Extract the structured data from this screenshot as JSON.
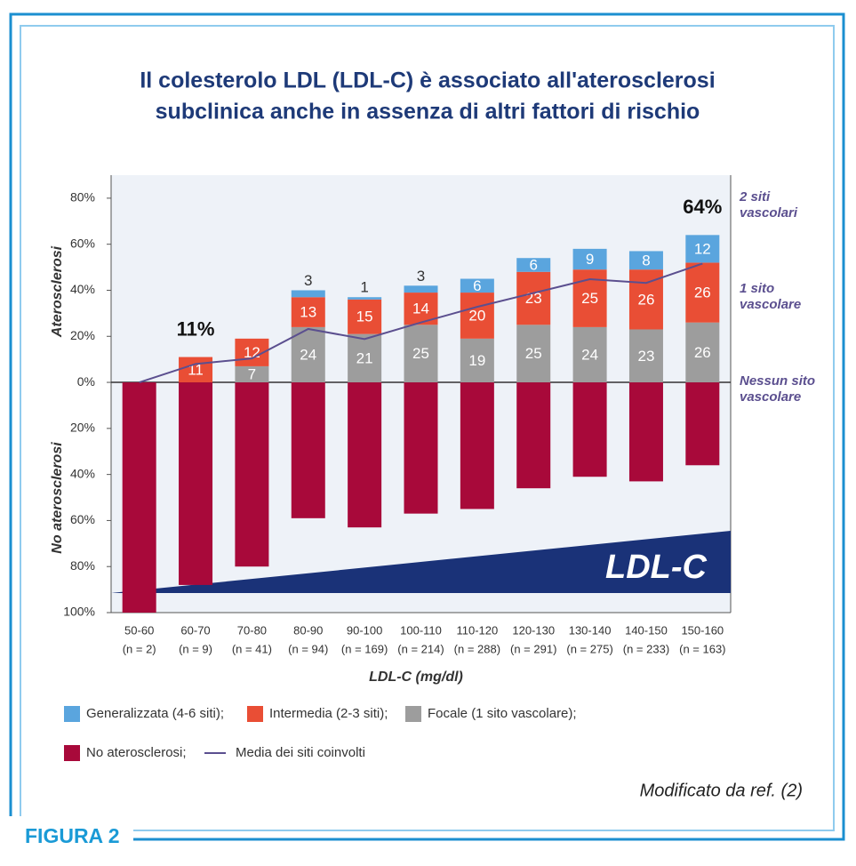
{
  "chart_data": {
    "type": "stacked_bar",
    "title": [
      "Il colesterolo LDL (LDL-C) è associato all'aterosclerosi",
      "subclinica anche in assenza di altri fattori di rischio"
    ],
    "figure_label": "FIGURA 2",
    "source": "Modificato da ref. (2)",
    "band_label": "LDL-C",
    "xlabel": "LDL-C (mg/dl)",
    "ylabel_top": "Aterosclerosi",
    "ylabel_bottom": "No aterosclerosi",
    "categories": [
      "50-60",
      "60-70",
      "70-80",
      "80-90",
      "90-100",
      "100-110",
      "110-120",
      "120-130",
      "130-140",
      "140-150",
      "150-160"
    ],
    "n_labels": [
      "(n = 2)",
      "(n = 9)",
      "(n = 41)",
      "(n = 94)",
      "(n = 169)",
      "(n = 214)",
      "(n = 288)",
      "(n = 291)",
      "(n = 275)",
      "(n = 233)",
      "(n = 163)"
    ],
    "series": [
      {
        "name": "No aterosclerosi;",
        "color": "#a8093a",
        "values": [
          -100,
          -88,
          -80,
          -59,
          -63,
          -57,
          -55,
          -46,
          -41,
          -43,
          -36
        ]
      },
      {
        "name": "Focale (1 sito vascolare);",
        "color": "#9d9d9d",
        "values": [
          null,
          null,
          7,
          24,
          21,
          25,
          19,
          25,
          24,
          23,
          26
        ]
      },
      {
        "name": "Intermedia (2-3 siti);",
        "color": "#e94e35",
        "values": [
          null,
          11,
          12,
          13,
          15,
          14,
          20,
          23,
          25,
          26,
          26
        ]
      },
      {
        "name": "Generalizzata (4-6 siti);",
        "color": "#5aa5de",
        "values": [
          null,
          null,
          null,
          3,
          1,
          3,
          6,
          6,
          9,
          8,
          12
        ]
      },
      {
        "name": "Media dei siti coinvolti",
        "color": "#5b4f8f",
        "axis": "y2",
        "type": "line",
        "values": [
          0,
          0.2,
          0.26,
          0.58,
          0.47,
          0.65,
          0.82,
          0.97,
          1.12,
          1.08,
          1.29
        ]
      }
    ],
    "annotations": [
      {
        "text": "11%",
        "x": "60-70",
        "y": 11
      },
      {
        "text": "64%",
        "x": "150-160",
        "y": 64
      }
    ],
    "ylim": [
      -100,
      90
    ],
    "yticks": [
      {
        "value": -100,
        "label": "100%"
      },
      {
        "value": -80,
        "label": "80%"
      },
      {
        "value": -60,
        "label": "60%"
      },
      {
        "value": -40,
        "label": "40%"
      },
      {
        "value": -20,
        "label": "20%"
      },
      {
        "value": 0,
        "label": "0%"
      },
      {
        "value": 20,
        "label": "20%"
      },
      {
        "value": 40,
        "label": "40%"
      },
      {
        "value": 60,
        "label": "60%"
      },
      {
        "value": 80,
        "label": "80%"
      }
    ],
    "y2lim": [
      -2.5,
      2.25
    ],
    "y2ticks": [
      {
        "value": 0,
        "label": "Nessun sito vascolare"
      },
      {
        "value": 1,
        "label": "1 sito vascolare"
      },
      {
        "value": 2,
        "label": "2 siti vascolari"
      }
    ]
  }
}
